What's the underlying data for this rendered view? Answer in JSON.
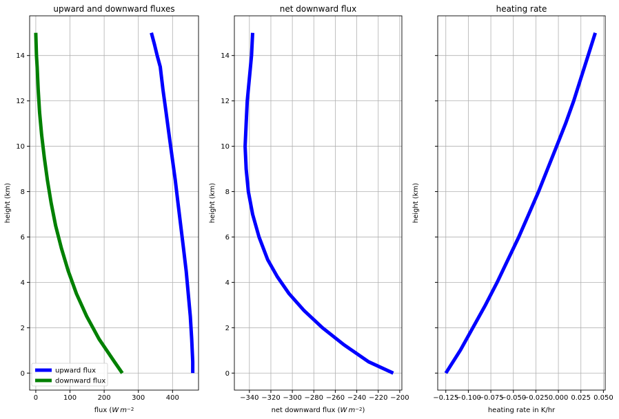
{
  "chart_data": [
    {
      "type": "line",
      "title": "upward and downward fluxes",
      "xlabel": "flux ($W\\,m^{-2}$",
      "ylabel": "height (km)",
      "xlim": [
        -18,
        476
      ],
      "ylim": [
        -0.75,
        15.75
      ],
      "xticks": [
        0,
        100,
        200,
        300,
        400
      ],
      "yticks": [
        0,
        2,
        4,
        6,
        8,
        10,
        12,
        14
      ],
      "grid": true,
      "legend": "lower-left",
      "series": [
        {
          "name": "upward flux",
          "color": "#0000ff",
          "x": [
            459,
            459,
            456,
            452,
            446,
            440,
            432,
            424,
            416,
            408,
            399,
            390,
            381,
            372,
            364,
            355,
            347,
            338
          ],
          "y": [
            0,
            0.5,
            1.5,
            2.5,
            3.5,
            4.5,
            5.5,
            6.5,
            7.5,
            8.5,
            9.5,
            10.5,
            11.5,
            12.5,
            13.5,
            14,
            14.5,
            15
          ]
        },
        {
          "name": "downward flux",
          "color": "#008000",
          "x": [
            253,
            230,
            185,
            149,
            119,
            95,
            75,
            58,
            45,
            34,
            25,
            17,
            11,
            7,
            4,
            2,
            1,
            0
          ],
          "y": [
            0,
            0.5,
            1.5,
            2.5,
            3.5,
            4.5,
            5.5,
            6.5,
            7.5,
            8.5,
            9.5,
            10.5,
            11.5,
            12.5,
            13.5,
            14,
            14.5,
            15
          ]
        }
      ]
    },
    {
      "type": "line",
      "title": "net downward flux",
      "xlabel": "net downward flux ($W\\,m^{-2}$)",
      "ylabel": "height (km)",
      "xlim": [
        -354,
        -198
      ],
      "ylim": [
        -0.75,
        15.75
      ],
      "xticks": [
        -340,
        -320,
        -300,
        -280,
        -260,
        -240,
        -220,
        -200
      ],
      "yticks": [
        0,
        2,
        4,
        6,
        8,
        10,
        12,
        14
      ],
      "grid": true,
      "series": [
        {
          "color": "#0000ff",
          "x": [
            -206,
            -229,
            -252,
            -272,
            -289,
            -303,
            -314,
            -323,
            -331,
            -337,
            -341,
            -343,
            -344,
            -343,
            -342,
            -340,
            -338,
            -337
          ],
          "y": [
            0,
            0.5,
            1.25,
            2,
            2.75,
            3.5,
            4.25,
            5,
            6,
            7,
            8,
            9,
            10,
            11,
            12,
            13,
            14,
            15
          ]
        }
      ]
    },
    {
      "type": "line",
      "title": "heating rate",
      "xlabel": "heating rate in K/hr",
      "ylabel": "height (km)",
      "xlim": [
        -0.134,
        0.052
      ],
      "ylim": [
        -0.75,
        15.75
      ],
      "xticks": [
        -0.125,
        -0.1,
        -0.075,
        -0.05,
        -0.025,
        0.0,
        0.025,
        0.05
      ],
      "xticklabels": [
        "−0.125",
        "−0.100",
        "−0.075",
        "−0.050",
        "−0.025",
        "0.000",
        "0.025",
        "0.050"
      ],
      "yticks": [
        0,
        2,
        4,
        6,
        8,
        10,
        12,
        14
      ],
      "grid": true,
      "series": [
        {
          "color": "#0000ff",
          "x": [
            -0.125,
            -0.109,
            -0.095,
            -0.081,
            -0.068,
            -0.056,
            -0.044,
            -0.033,
            -0.022,
            -0.012,
            -0.002,
            0.008,
            0.017,
            0.025,
            0.033,
            0.041
          ],
          "y": [
            0,
            1,
            2,
            3,
            4,
            5,
            6,
            7,
            8,
            9,
            10,
            11,
            12,
            13,
            14,
            15
          ]
        }
      ]
    }
  ]
}
